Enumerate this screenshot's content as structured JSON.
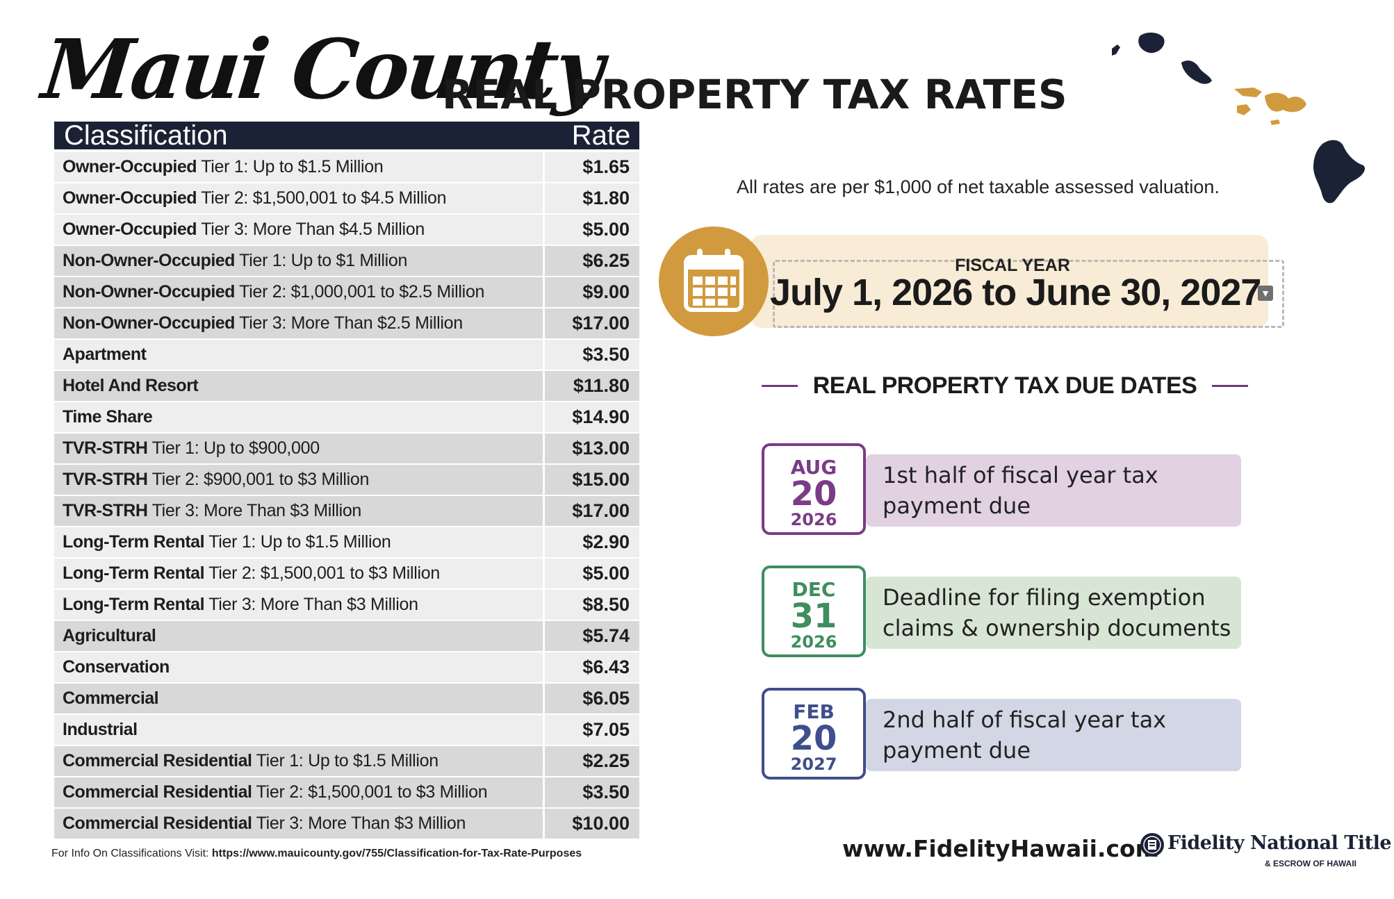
{
  "header": {
    "script_title": "Maui County",
    "title": "REAL PROPERTY TAX RATES"
  },
  "table": {
    "col_classification": "Classification",
    "col_rate": "Rate",
    "rows": [
      {
        "bold": "Owner-Occupied",
        "rest": " Tier 1: Up to $1.5 Million",
        "rate": "$1.65"
      },
      {
        "bold": "Owner-Occupied",
        "rest": " Tier 2: $1,500,001 to $4.5 Million",
        "rate": "$1.80"
      },
      {
        "bold": "Owner-Occupied",
        "rest": " Tier 3: More Than $4.5 Million",
        "rate": "$5.00"
      },
      {
        "bold": "Non-Owner-Occupied",
        "rest": " Tier 1: Up to $1 Million",
        "rate": "$6.25"
      },
      {
        "bold": "Non-Owner-Occupied",
        "rest": " Tier 2: $1,000,001 to $2.5 Million",
        "rate": "$9.00"
      },
      {
        "bold": "Non-Owner-Occupied",
        "rest": " Tier 3: More Than $2.5 Million",
        "rate": "$17.00"
      },
      {
        "bold": "Apartment",
        "rest": "",
        "rate": "$3.50"
      },
      {
        "bold": "Hotel And Resort",
        "rest": "",
        "rate": "$11.80"
      },
      {
        "bold": "Time Share",
        "rest": "",
        "rate": "$14.90"
      },
      {
        "bold": "TVR-STRH",
        "rest": " Tier 1: Up to $900,000",
        "rate": "$13.00"
      },
      {
        "bold": "TVR-STRH",
        "rest": " Tier 2: $900,001 to $3 Million",
        "rate": "$15.00"
      },
      {
        "bold": "TVR-STRH",
        "rest": " Tier 3: More Than $3 Million",
        "rate": "$17.00"
      },
      {
        "bold": "Long-Term Rental",
        "rest": " Tier 1: Up to $1.5 Million",
        "rate": "$2.90"
      },
      {
        "bold": "Long-Term Rental",
        "rest": " Tier 2: $1,500,001 to $3 Million",
        "rate": "$5.00"
      },
      {
        "bold": "Long-Term Rental",
        "rest": " Tier 3: More Than $3 Million",
        "rate": "$8.50"
      },
      {
        "bold": "Agricultural",
        "rest": "",
        "rate": "$5.74"
      },
      {
        "bold": "Conservation",
        "rest": "",
        "rate": "$6.43"
      },
      {
        "bold": "Commercial",
        "rest": "",
        "rate": "$6.05"
      },
      {
        "bold": "Industrial",
        "rest": "",
        "rate": "$7.05"
      },
      {
        "bold": "Commercial Residential",
        "rest": " Tier 1: Up to $1.5 Million",
        "rate": "$2.25"
      },
      {
        "bold": "Commercial Residential",
        "rest": " Tier 2: $1,500,001 to $3 Million",
        "rate": "$3.50"
      },
      {
        "bold": "Commercial Residential",
        "rest": " Tier 3: More Than $3 Million",
        "rate": "$10.00"
      }
    ]
  },
  "footnote": {
    "label": "For Info On Classifications Visit: ",
    "url": "https://www.mauicounty.gov/755/Classification-for-Tax-Rate-Purposes"
  },
  "rates_note": "All rates are per $1,000 of net taxable assessed valuation.",
  "fiscal_year": {
    "label": "FISCAL YEAR",
    "dates": "July 1, 2026 to June 30, 2027",
    "icon": "calendar-icon"
  },
  "due_dates": {
    "heading": "REAL PROPERTY TAX DUE DATES",
    "items": [
      {
        "month": "AUG",
        "day": "20",
        "year": "2026",
        "line1": "1st half of fiscal year tax",
        "line2": "payment due"
      },
      {
        "month": "DEC",
        "day": "31",
        "year": "2026",
        "line1": "Deadline for filing exemption",
        "line2": "claims & ownership documents"
      },
      {
        "month": "FEB",
        "day": "20",
        "year": "2027",
        "line1": "2nd half of fiscal year tax",
        "line2": "payment due"
      }
    ]
  },
  "footer": {
    "website": "www.FidelityHawaii.com",
    "company": "Fidelity National Title",
    "company_sub": "& ESCROW OF HAWAII"
  },
  "colors": {
    "navy": "#1c2236",
    "gold": "#d19a3e",
    "purple": "#7a3c86",
    "green": "#3e8e5e",
    "blue": "#3f4e8c"
  }
}
